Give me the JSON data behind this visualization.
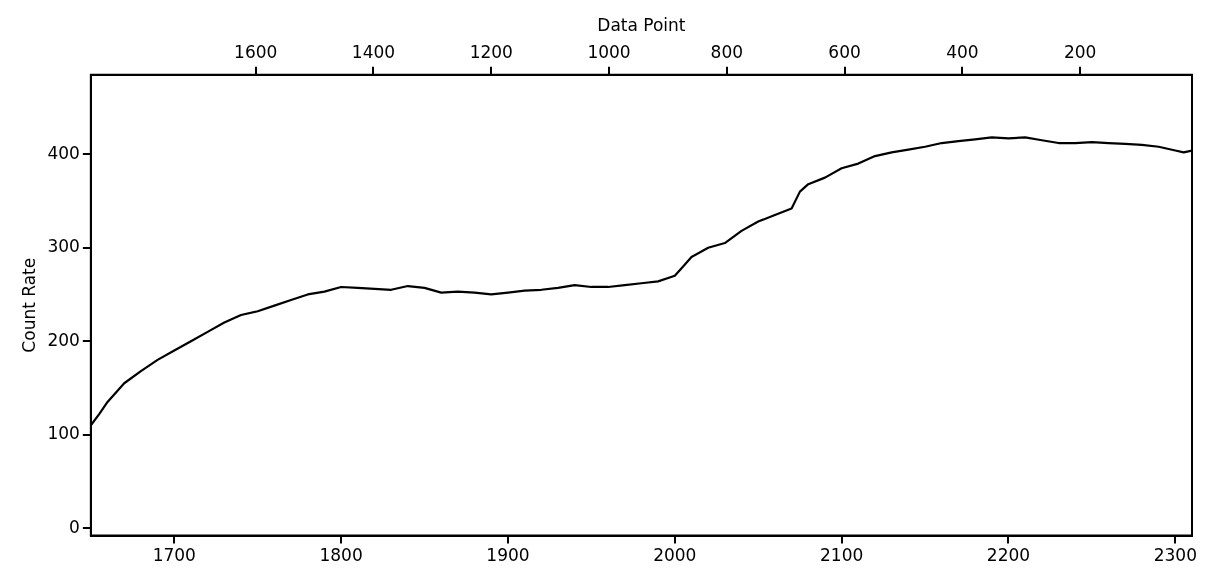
{
  "chart_data": {
    "type": "line",
    "ylabel": "Count Rate",
    "x2label": "Data Point",
    "x": [
      1650,
      1655,
      1660,
      1670,
      1680,
      1690,
      1700,
      1710,
      1720,
      1730,
      1740,
      1750,
      1760,
      1770,
      1780,
      1790,
      1800,
      1810,
      1820,
      1830,
      1840,
      1850,
      1860,
      1870,
      1880,
      1890,
      1900,
      1910,
      1920,
      1930,
      1940,
      1950,
      1960,
      1970,
      1980,
      1990,
      2000,
      2005,
      2010,
      2020,
      2030,
      2040,
      2050,
      2060,
      2070,
      2075,
      2080,
      2090,
      2100,
      2110,
      2120,
      2130,
      2140,
      2150,
      2160,
      2170,
      2180,
      2190,
      2200,
      2210,
      2220,
      2230,
      2240,
      2250,
      2260,
      2270,
      2280,
      2290,
      2300,
      2305,
      2310
    ],
    "series": [
      {
        "color": "#000000",
        "values": [
          110,
          122,
          135,
          155,
          168,
          180,
          190,
          200,
          210,
          220,
          228,
          232,
          238,
          244,
          250,
          253,
          258,
          257,
          256,
          255,
          259,
          257,
          252,
          253,
          252,
          250,
          252,
          254,
          255,
          257,
          260,
          258,
          258,
          260,
          262,
          264,
          270,
          280,
          290,
          300,
          305,
          318,
          328,
          335,
          342,
          360,
          368,
          375,
          385,
          390,
          398,
          402,
          405,
          408,
          412,
          414,
          416,
          418,
          417,
          418,
          415,
          412,
          412,
          413,
          412,
          411,
          410,
          408,
          404,
          402,
          404
        ]
      }
    ],
    "xlim": [
      1650,
      2310
    ],
    "xticks": [
      1700,
      1800,
      1900,
      2000,
      2100,
      2200,
      2300
    ],
    "x2lim": [
      1880,
      10
    ],
    "x2ticks": [
      1600,
      1400,
      1200,
      1000,
      800,
      600,
      400,
      200
    ],
    "ylim": [
      -8,
      485
    ],
    "yticks": [
      0,
      100,
      200,
      300,
      400
    ],
    "grid": false,
    "legend": false,
    "marker": "none",
    "line_style": "solid"
  }
}
